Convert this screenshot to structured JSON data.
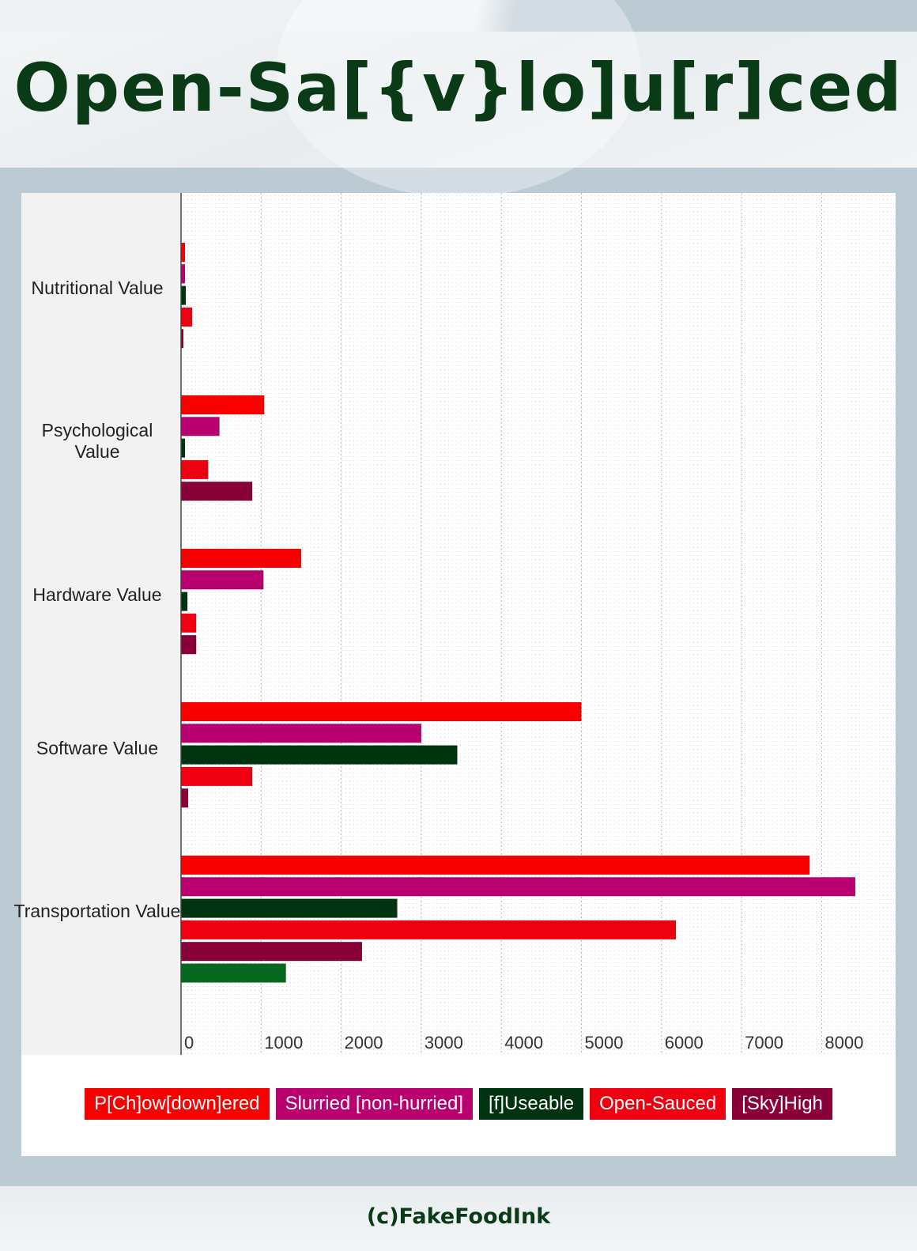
{
  "title": "Open-Sa[{v}lo]u[r]ced",
  "footer": "(c)FakeFoodInk",
  "chart_data": {
    "type": "bar",
    "orientation": "horizontal",
    "title": "Open-Sa[{v}lo]u[r]ced",
    "xlabel": "",
    "ylabel": "",
    "xlim": [
      0,
      8700
    ],
    "x_ticks": [
      0,
      1000,
      2000,
      3000,
      4000,
      5000,
      6000,
      7000,
      8000
    ],
    "grid": true,
    "legend_position": "bottom",
    "categories": [
      "Nutritional Value",
      "Psychological Value",
      "Hardware Value",
      "Software Value",
      "Transportation Value"
    ],
    "series": [
      {
        "name": "P[Ch]ow[down]ered",
        "color": "#f90000",
        "values": [
          50,
          1040,
          1500,
          5000,
          7850
        ]
      },
      {
        "name": "Slurried [non-hurried]",
        "color": "#b8006e",
        "values": [
          50,
          480,
          1030,
          3000,
          8420
        ]
      },
      {
        "name": "[f]Useable",
        "color": "#00330f",
        "values": [
          60,
          50,
          80,
          3450,
          2700
        ]
      },
      {
        "name": "Open-Sauced",
        "color": "#ee0010",
        "values": [
          140,
          340,
          190,
          890,
          6180
        ]
      },
      {
        "name": "[Sky]High",
        "color": "#8a0038",
        "values": [
          10,
          890,
          190,
          90,
          2260
        ]
      },
      {
        "name": "",
        "color": "#06681e",
        "values": [
          null,
          null,
          null,
          null,
          1310
        ]
      }
    ]
  }
}
